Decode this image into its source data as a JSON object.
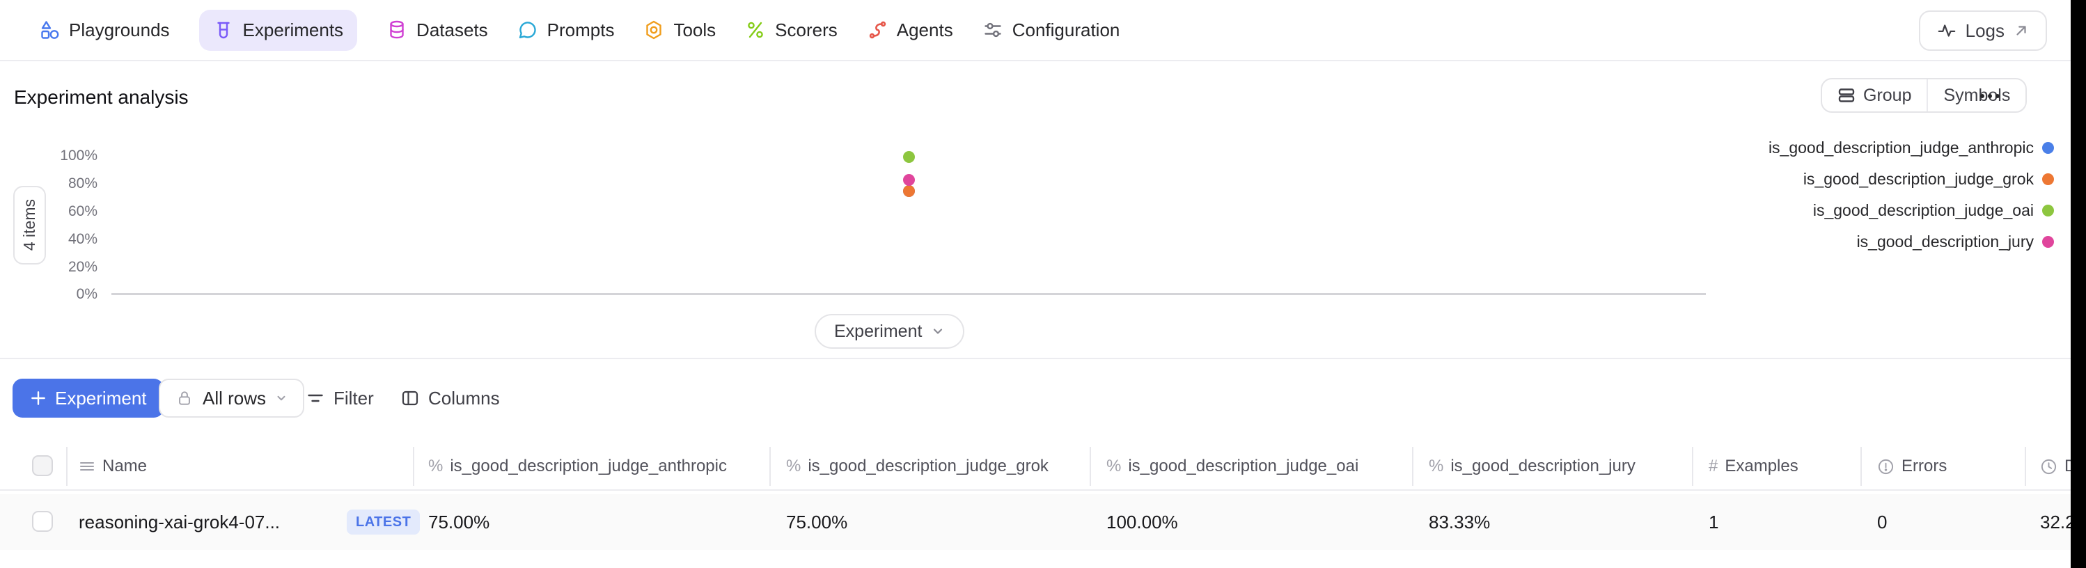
{
  "colors": {
    "accent_blue": "#4b74e8",
    "nav_active_bg": "#ebe8fc",
    "latest_badge_bg": "#e3eafc",
    "row_bg": "#fafafa"
  },
  "nav": {
    "items": [
      {
        "label": "Playgrounds",
        "icon": "playgrounds-icon",
        "color": "#4878ee",
        "active": false
      },
      {
        "label": "Experiments",
        "icon": "experiments-icon",
        "color": "#7a5af8",
        "active": true
      },
      {
        "label": "Datasets",
        "icon": "datasets-icon",
        "color": "#cf3fd3",
        "active": false
      },
      {
        "label": "Prompts",
        "icon": "prompts-icon",
        "color": "#29a8d6",
        "active": false
      },
      {
        "label": "Tools",
        "icon": "tools-icon",
        "color": "#f09d1c",
        "active": false
      },
      {
        "label": "Scorers",
        "icon": "scorers-icon",
        "color": "#84cc16",
        "active": false
      },
      {
        "label": "Agents",
        "icon": "agents-icon",
        "color": "#e65649",
        "active": false
      },
      {
        "label": "Configuration",
        "icon": "configuration-icon",
        "color": "#71717a",
        "active": false
      }
    ],
    "logs_button": {
      "label": "Logs"
    }
  },
  "analysis": {
    "title": "Experiment analysis",
    "group_label": "Group",
    "symbols_label": "Symbols",
    "items_badge": "4 items",
    "x_axis_selector": "Experiment"
  },
  "chart_data": {
    "type": "scatter",
    "title": "Experiment analysis",
    "x_axis_label": "Experiment",
    "x_categories": [
      "reasoning-xai-grok4-07..."
    ],
    "series": [
      {
        "name": "is_good_description_judge_anthropic",
        "color": "#4a7fe8",
        "values": [
          75.0
        ]
      },
      {
        "name": "is_good_description_judge_grok",
        "color": "#ed7733",
        "values": [
          75.0
        ]
      },
      {
        "name": "is_good_description_judge_oai",
        "color": "#8dc63f",
        "values": [
          100.0
        ]
      },
      {
        "name": "is_good_description_jury",
        "color": "#e0459c",
        "values": [
          83.33
        ]
      }
    ],
    "ylim": [
      0,
      100
    ],
    "yticks": [
      "100%",
      "80%",
      "60%",
      "40%",
      "20%",
      "0%"
    ],
    "y_unit": "%",
    "grid": false,
    "legend_position": "right",
    "items_count_label": "4 items"
  },
  "toolbar": {
    "add_experiment_label": "Experiment",
    "rows_filter_label": "All rows",
    "filter_label": "Filter",
    "columns_label": "Columns"
  },
  "table": {
    "icon_glyphs": {
      "percent": "%",
      "hash": "#"
    },
    "columns": [
      {
        "label": "Name",
        "icon": "rows-icon"
      },
      {
        "label": "is_good_description_judge_anthropic",
        "icon": "percent-icon"
      },
      {
        "label": "is_good_description_judge_grok",
        "icon": "percent-icon"
      },
      {
        "label": "is_good_description_judge_oai",
        "icon": "percent-icon"
      },
      {
        "label": "is_good_description_jury",
        "icon": "percent-icon"
      },
      {
        "label": "Examples",
        "icon": "hash-icon"
      },
      {
        "label": "Errors",
        "icon": "alert-circle-icon"
      },
      {
        "label": "D",
        "icon": "clock-icon"
      }
    ],
    "rows": [
      {
        "name": "reasoning-xai-grok4-07...",
        "badge": "LATEST",
        "is_good_description_judge_anthropic": "75.00%",
        "is_good_description_judge_grok": "75.00%",
        "is_good_description_judge_oai": "100.00%",
        "is_good_description_jury": "83.33%",
        "examples": "1",
        "errors": "0",
        "duration": "32.2"
      }
    ]
  }
}
